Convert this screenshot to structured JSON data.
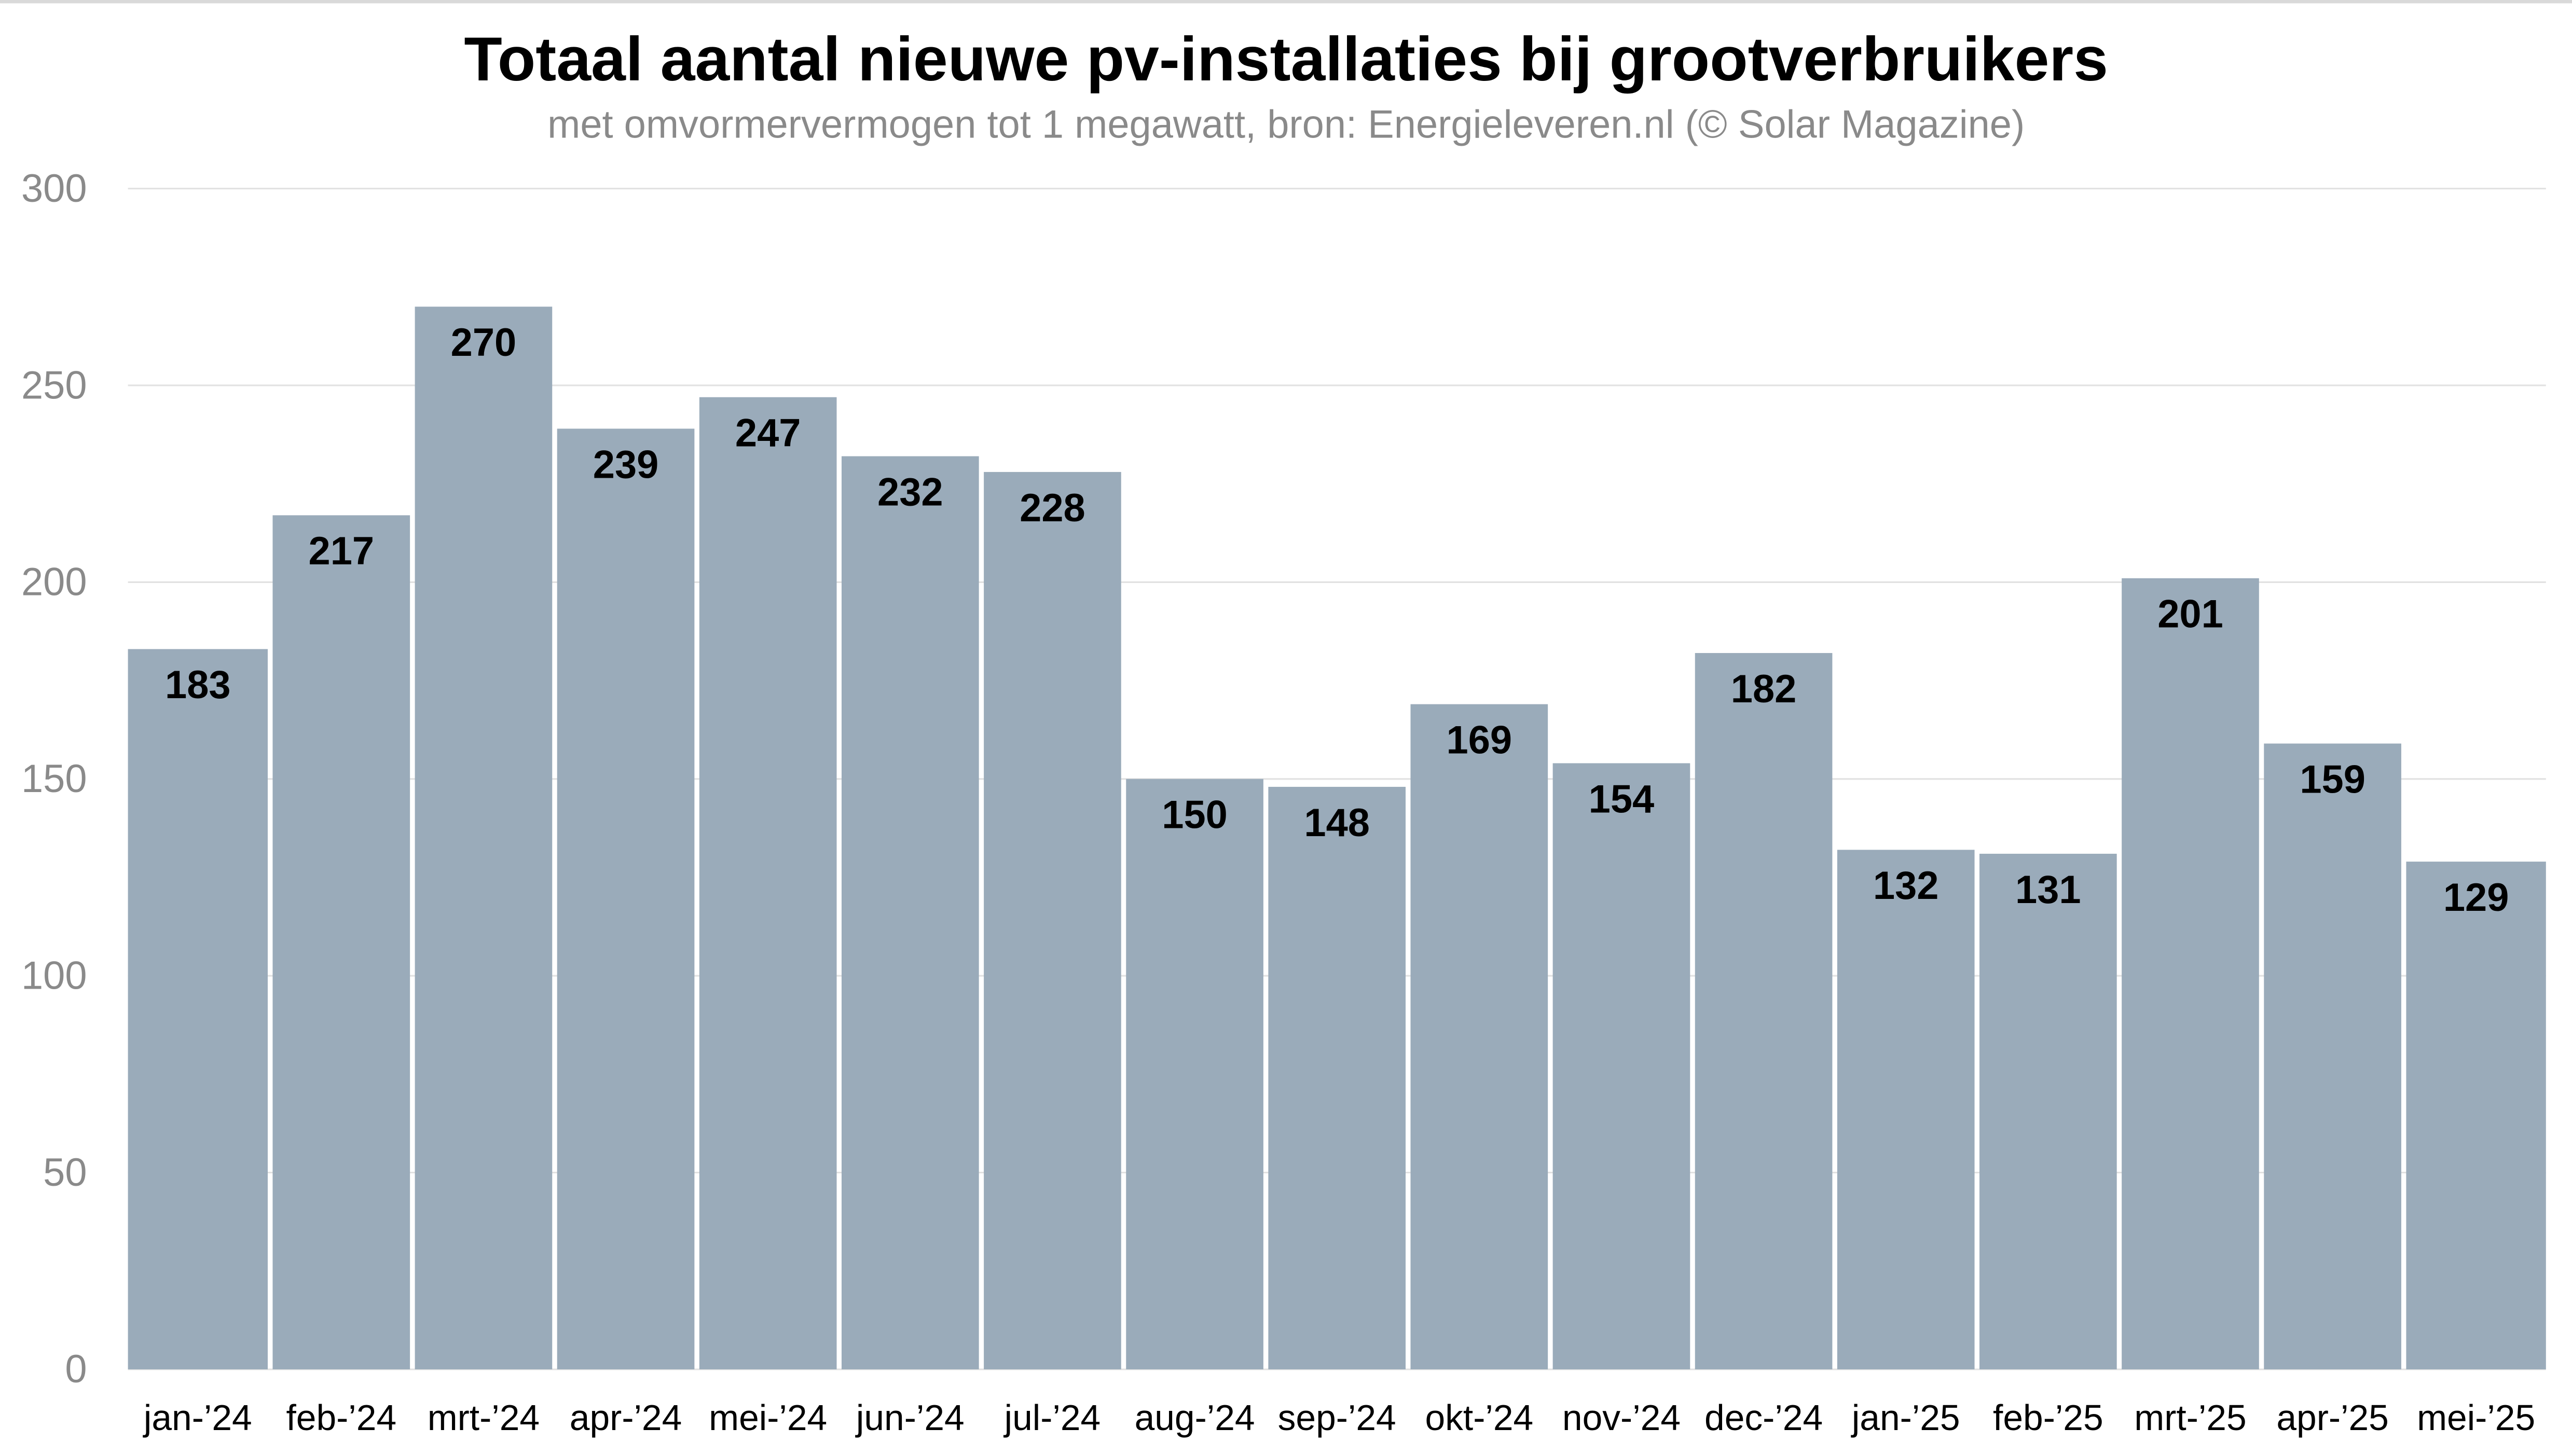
{
  "chart_data": {
    "type": "bar",
    "title": "Totaal aantal nieuwe pv-installaties bij grootverbruikers",
    "subtitle": "met omvormervermogen tot 1 megawatt, bron: Energieleveren.nl (© Solar Magazine)",
    "xlabel": "",
    "ylabel": "",
    "ylim": [
      0,
      300
    ],
    "yticks": [
      "0",
      "50",
      "100",
      "150",
      "200",
      "250",
      "300"
    ],
    "grid": true,
    "categories": [
      "jan-’24",
      "feb-’24",
      "mrt-’24",
      "apr-’24",
      "mei-’24",
      "jun-’24",
      "jul-’24",
      "aug-’24",
      "sep-’24",
      "okt-’24",
      "nov-’24",
      "dec-’24",
      "jan-’25",
      "feb-’25",
      "mrt-’25",
      "apr-’25",
      "mei-’25"
    ],
    "values": [
      183,
      217,
      270,
      239,
      247,
      232,
      228,
      150,
      148,
      169,
      154,
      182,
      132,
      131,
      201,
      159,
      129
    ],
    "colors": {
      "bar": "#9aabba",
      "grid": "#e2e2e2",
      "title": "#000000",
      "subtitle": "#8a8a8a",
      "tick": "#8a8a8a",
      "label": "#000000"
    }
  }
}
